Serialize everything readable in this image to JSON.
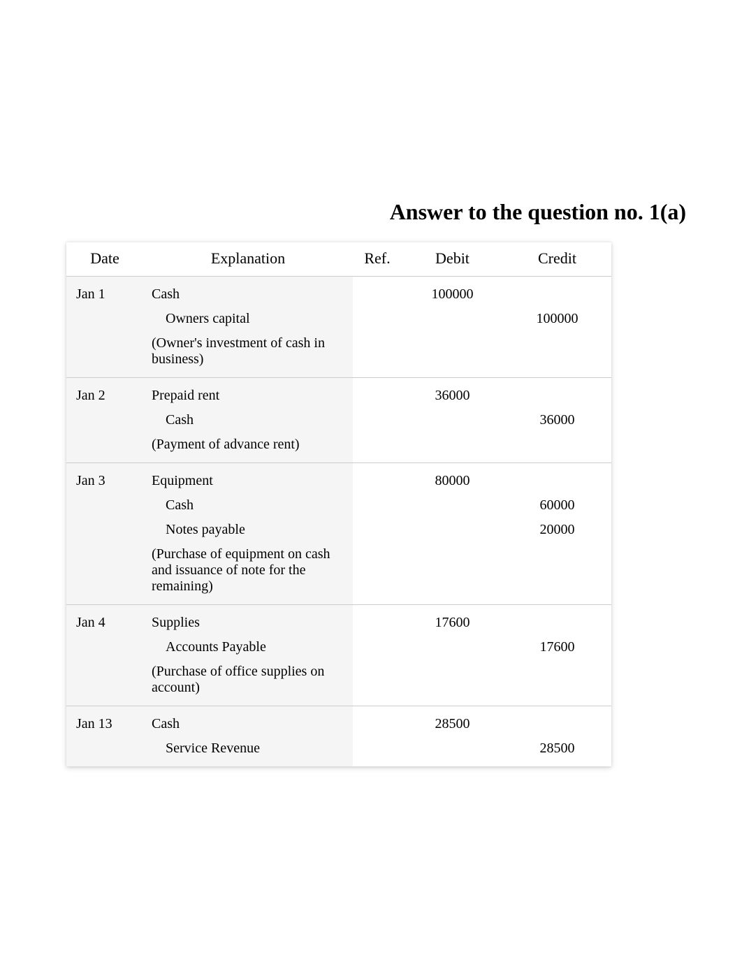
{
  "title": "Answer to the question no. 1(a)",
  "columns": {
    "date": "Date",
    "explanation": "Explanation",
    "ref": "Ref.",
    "debit": "Debit",
    "credit": "Credit"
  },
  "entries": [
    {
      "date": "Jan 1",
      "lines": [
        {
          "text": "Cash",
          "indent": false,
          "debit": "100000",
          "credit": ""
        },
        {
          "text": "Owners capital",
          "indent": true,
          "debit": "",
          "credit": "100000"
        },
        {
          "text": "(Owner's investment of cash in business)",
          "indent": false,
          "debit": "",
          "credit": ""
        }
      ]
    },
    {
      "date": "Jan 2",
      "lines": [
        {
          "text": "Prepaid rent",
          "indent": false,
          "debit": "36000",
          "credit": ""
        },
        {
          "text": "Cash",
          "indent": true,
          "debit": "",
          "credit": "36000"
        },
        {
          "text": "(Payment of advance rent)",
          "indent": false,
          "debit": "",
          "credit": ""
        }
      ]
    },
    {
      "date": "Jan 3",
      "lines": [
        {
          "text": "Equipment",
          "indent": false,
          "debit": "80000",
          "credit": ""
        },
        {
          "text": "Cash",
          "indent": true,
          "debit": "",
          "credit": "60000"
        },
        {
          "text": "Notes payable",
          "indent": true,
          "debit": "",
          "credit": "20000"
        },
        {
          "text": "(Purchase of equipment on cash and issuance of note for the remaining)",
          "indent": false,
          "debit": "",
          "credit": ""
        }
      ]
    },
    {
      "date": "Jan 4",
      "lines": [
        {
          "text": "Supplies",
          "indent": false,
          "debit": "17600",
          "credit": ""
        },
        {
          "text": "Accounts Payable",
          "indent": true,
          "debit": "",
          "credit": "17600"
        },
        {
          "text": "(Purchase of office supplies on account)",
          "indent": false,
          "debit": "",
          "credit": ""
        }
      ]
    },
    {
      "date": "Jan 13",
      "lines": [
        {
          "text": "Cash",
          "indent": false,
          "debit": "28500",
          "credit": ""
        },
        {
          "text": "Service Revenue",
          "indent": true,
          "debit": "",
          "credit": "28500"
        }
      ]
    }
  ],
  "style": {
    "page_bg": "#ffffff",
    "title_fontsize": 32,
    "title_weight": "bold",
    "header_fontsize": 22,
    "body_fontsize": 20,
    "shaded_bg": "#f5f5f5",
    "border_color": "#cccccc",
    "font_family": "Times New Roman"
  }
}
